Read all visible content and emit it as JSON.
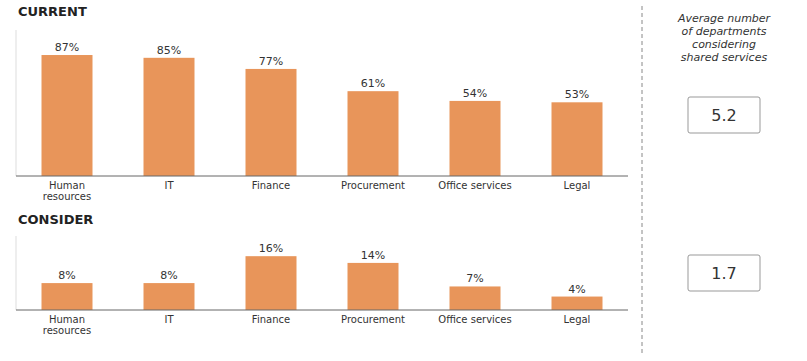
{
  "chart_data": [
    {
      "type": "bar",
      "title": "CURRENT",
      "categories": [
        "Human\nresources",
        "IT",
        "Finance",
        "Procurement",
        "Office services",
        "Legal"
      ],
      "values": [
        87,
        85,
        77,
        61,
        54,
        53
      ],
      "value_labels": [
        "87%",
        "85%",
        "77%",
        "61%",
        "54%",
        "53%"
      ],
      "color": "#E8955A",
      "ylim": [
        0,
        105
      ],
      "data_labels": true,
      "tick_labels": "x",
      "annotation": "Average number\nof departments\nconsidering\nshared services",
      "average": 5.2
    },
    {
      "type": "bar",
      "title": "CONSIDER",
      "categories": [
        "Human\nresources",
        "IT",
        "Finance",
        "Procurement",
        "Office services",
        "Legal"
      ],
      "values": [
        8,
        8,
        16,
        14,
        7,
        4
      ],
      "value_labels": [
        "8%",
        "8%",
        "16%",
        "14%",
        "7%",
        "4%"
      ],
      "color": "#E8955A",
      "ylim": [
        0,
        22
      ],
      "data_labels": true,
      "tick_labels": "x",
      "average": 1.7
    }
  ]
}
